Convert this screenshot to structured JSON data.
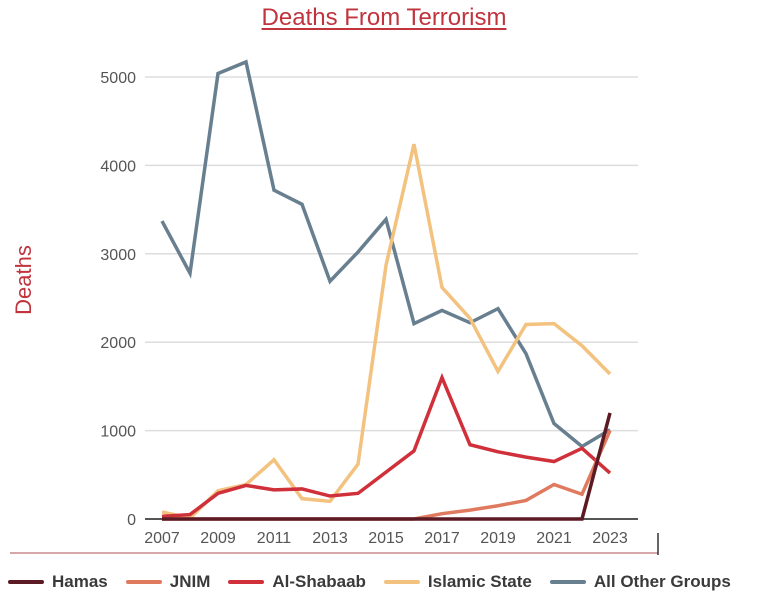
{
  "chart_data": {
    "type": "line",
    "title": "Deaths From Terrorism",
    "xlabel": "",
    "ylabel": "Deaths",
    "ylim": [
      0,
      5300
    ],
    "xlim": [
      2007,
      2023
    ],
    "grid": true,
    "legend_position": "bottom",
    "y_ticks": [
      0,
      1000,
      2000,
      3000,
      4000,
      5000
    ],
    "x_ticks": [
      2007,
      2009,
      2011,
      2013,
      2015,
      2017,
      2019,
      2021,
      2023
    ],
    "x": [
      2007,
      2008,
      2009,
      2010,
      2011,
      2012,
      2013,
      2014,
      2015,
      2016,
      2017,
      2018,
      2019,
      2020,
      2021,
      2022,
      2023
    ],
    "series": [
      {
        "name": "Hamas",
        "color": "#5c1a24",
        "values": [
          0,
          0,
          0,
          0,
          0,
          0,
          0,
          0,
          0,
          0,
          0,
          0,
          0,
          0,
          0,
          0,
          1200
        ]
      },
      {
        "name": "JNIM",
        "color": "#e07a5f",
        "values": [
          0,
          0,
          0,
          0,
          0,
          0,
          0,
          0,
          0,
          0,
          60,
          100,
          150,
          210,
          390,
          280,
          1000
        ]
      },
      {
        "name": "Al-Shabaab",
        "color": "#d0303a",
        "values": [
          30,
          50,
          290,
          380,
          330,
          340,
          260,
          290,
          530,
          770,
          1600,
          840,
          760,
          700,
          650,
          800,
          520
        ]
      },
      {
        "name": "Islamic State",
        "color": "#f3c27f",
        "values": [
          80,
          10,
          320,
          390,
          670,
          230,
          200,
          620,
          2870,
          4240,
          2620,
          2270,
          1670,
          2200,
          2210,
          1960,
          1640
        ]
      },
      {
        "name": "All Other Groups",
        "color": "#687f8f",
        "values": [
          3370,
          2780,
          5040,
          5170,
          3720,
          3560,
          2690,
          3020,
          3390,
          2210,
          2360,
          2220,
          2380,
          1870,
          1080,
          820,
          1010
        ]
      }
    ]
  }
}
